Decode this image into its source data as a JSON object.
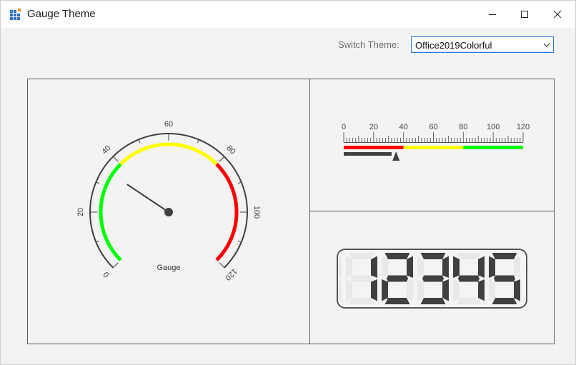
{
  "window": {
    "title": "Gauge Theme",
    "app_icon": "grid-app-icon",
    "controls": [
      "minimize-icon",
      "maximize-icon",
      "close-icon"
    ]
  },
  "theme": {
    "label": "Switch Theme:",
    "selected": "Office2019Colorful"
  },
  "colors": {
    "green": "#00ff00",
    "yellow": "#ffff00",
    "red": "#ff0000",
    "needle": "#404040",
    "accent": "#2b79d2"
  },
  "radial_gauge": {
    "label": "Gauge",
    "min": 0,
    "max": 120,
    "ticks": [
      "0",
      "20",
      "40",
      "60",
      "80",
      "100",
      "120"
    ],
    "value": 35,
    "ranges": [
      {
        "from": 0,
        "to": 40,
        "color": "green"
      },
      {
        "from": 40,
        "to": 80,
        "color": "yellow"
      },
      {
        "from": 80,
        "to": 120,
        "color": "red"
      }
    ]
  },
  "linear_gauge": {
    "min": 0,
    "max": 120,
    "ticks": [
      "0",
      "20",
      "40",
      "60",
      "80",
      "100",
      "120"
    ],
    "bar_value": 32,
    "pointer_value": 35,
    "ranges": [
      {
        "from": 0,
        "to": 40,
        "color": "red"
      },
      {
        "from": 40,
        "to": 80,
        "color": "yellow"
      },
      {
        "from": 80,
        "to": 120,
        "color": "green"
      }
    ]
  },
  "digital_gauge": {
    "value": "12345",
    "digit_count": 5
  }
}
